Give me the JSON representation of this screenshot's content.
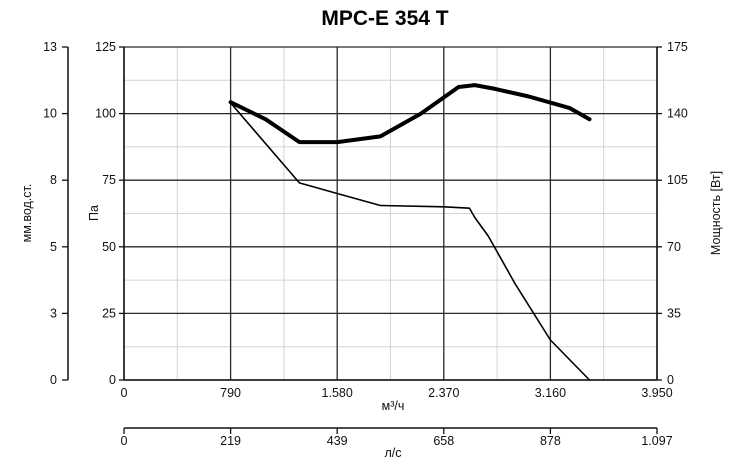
{
  "chart_data": {
    "type": "line",
    "title": "MPC-E 354 T",
    "x_axis": {
      "label": "м³/ч",
      "range": [
        0,
        3950
      ],
      "ticks": [
        0,
        790,
        1580,
        2370,
        3160,
        3950
      ],
      "tick_labels": [
        "0",
        "790",
        "1.580",
        "2.370",
        "3.160",
        "3.950"
      ]
    },
    "x2_axis": {
      "label": "л/с",
      "range": [
        0,
        1097
      ],
      "tick_labels": [
        "0",
        "219",
        "439",
        "658",
        "878",
        "1.097"
      ]
    },
    "y_axis": {
      "label": "Па",
      "range": [
        0,
        125
      ],
      "ticks": [
        0,
        25,
        50,
        75,
        100,
        125
      ]
    },
    "y_outer_axis": {
      "label": "мм.вод.ст.",
      "tick_labels": [
        "0",
        "3",
        "5",
        "8",
        "10",
        "13"
      ]
    },
    "y2_axis": {
      "label": "Мощность [Вт]",
      "range": [
        0,
        175
      ],
      "ticks": [
        0,
        35,
        70,
        105,
        140,
        175
      ]
    },
    "grid": true,
    "minor_x_step": 395,
    "minor_y_step": 12.5,
    "series": [
      {
        "axis": "y",
        "stroke": "#000000",
        "width": 1.6,
        "x": [
          790,
          1300,
          1580,
          1900,
          2370,
          2560,
          2600,
          2700,
          2900,
          3160,
          3450
        ],
        "y": [
          104,
          74,
          70,
          65.5,
          65,
          64.5,
          61,
          54,
          36,
          15,
          0
        ]
      },
      {
        "axis": "y2",
        "stroke": "#000000",
        "width": 4,
        "x": [
          790,
          1050,
          1300,
          1580,
          1900,
          2200,
          2480,
          2600,
          2750,
          3000,
          3300,
          3450
        ],
        "y": [
          146,
          137,
          125,
          125,
          128,
          140,
          154,
          155,
          153,
          149,
          143,
          137
        ]
      }
    ]
  }
}
